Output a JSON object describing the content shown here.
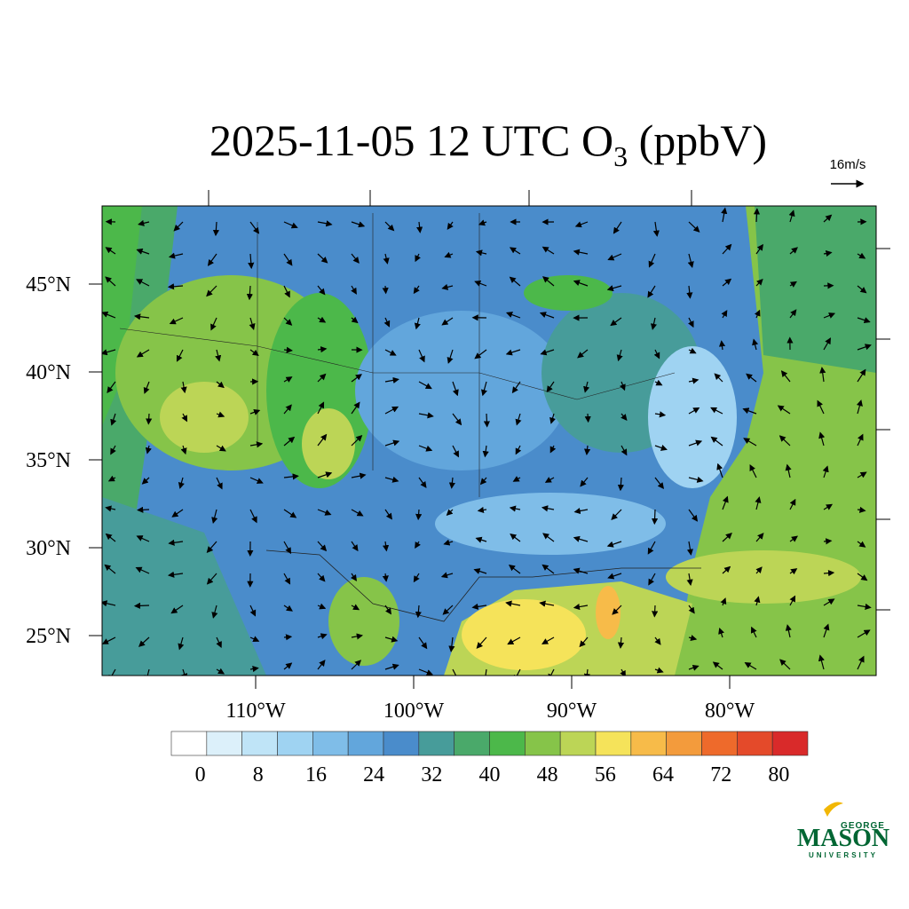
{
  "title": {
    "main": "2025-11-05 12 UTC O",
    "subscript": "3",
    "units": " (ppbV)"
  },
  "vector_key": "16m/s",
  "map": {
    "lat_ticks": [
      {
        "value": 45,
        "label": "45°N"
      },
      {
        "value": 40,
        "label": "40°N"
      },
      {
        "value": 35,
        "label": "35°N"
      },
      {
        "value": 30,
        "label": "30°N"
      },
      {
        "value": 25,
        "label": "25°N"
      }
    ],
    "lon_ticks": [
      {
        "value": -110,
        "label": "110°W"
      },
      {
        "value": -100,
        "label": "100°W"
      },
      {
        "value": -90,
        "label": "90°W"
      },
      {
        "value": -80,
        "label": "80°W"
      }
    ]
  },
  "colorbar": {
    "lim": [
      -4,
      84
    ],
    "ticks": [
      0,
      8,
      16,
      24,
      32,
      40,
      48,
      56,
      64,
      72,
      80
    ],
    "colors": [
      "#ffffff",
      "#dcf0fa",
      "#bfe4f7",
      "#9fd3f2",
      "#7fbde8",
      "#62a6dc",
      "#4a8ccb",
      "#479c9a",
      "#4aa96a",
      "#4cb84a",
      "#86c449",
      "#bcd556",
      "#f5e35a",
      "#f7bb49",
      "#f39b3c",
      "#ee6a2b",
      "#e44a2a",
      "#d92a2a",
      "#c91f2a",
      "#b21c24",
      "#9c1a20",
      "#8a171c"
    ]
  },
  "logo": {
    "top": "GEORGE",
    "name": "MASON",
    "bottom": "UNIVERSITY"
  }
}
